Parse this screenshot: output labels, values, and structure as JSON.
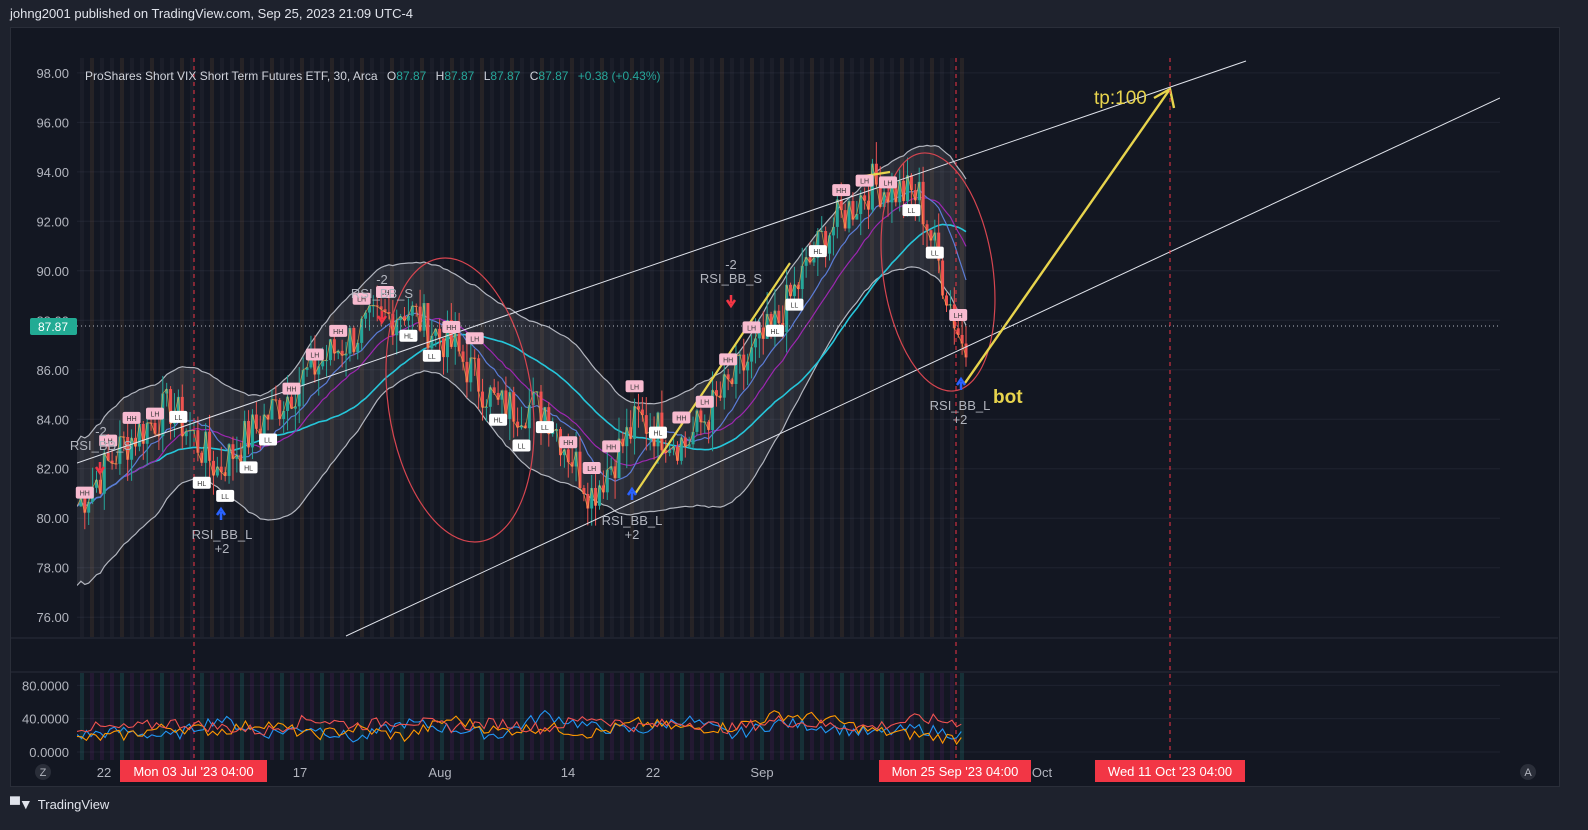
{
  "header": {
    "published": "johng2001 published on TradingView.com, Sep 25, 2023 21:09 UTC-4"
  },
  "footer": {
    "brand": "TradingView"
  },
  "legend": {
    "symbol": "ProShares Short VIX Short Term Futures ETF, 30, Arca",
    "o_label": "O",
    "o": "87.87",
    "h_label": "H",
    "h": "87.87",
    "l_label": "L",
    "l": "87.87",
    "c_label": "C",
    "c": "87.87",
    "change": "+0.38 (+0.43%)"
  },
  "price_badge": "87.87",
  "annotations": {
    "tp": "tp:100",
    "bot": "bot",
    "rsi_s1": "RSI_BB_S",
    "rsi_s1_n": "-2",
    "rsi_s2": "RSI_BB_S",
    "rsi_s2_n": "-2",
    "rsi_s3": "RSI_BB_S",
    "rsi_s3_n": "-2",
    "rsi_l1": "RSI_BB_L",
    "rsi_l1_n": "+2",
    "rsi_l2": "RSI_BB_L",
    "rsi_l2_n": "+2",
    "rsi_l3": "RSI_BB_L",
    "rsi_l3_n": "+2"
  },
  "time_axis": {
    "ticks": [
      "22",
      "17",
      "Aug",
      "14",
      "22",
      "Sep",
      "Oct"
    ],
    "markers": [
      "Mon 03 Jul '23   04:00",
      "Mon 25 Sep '23   04:00",
      "Wed 11 Oct '23   04:00"
    ]
  },
  "bottom_buttons": {
    "left": "Z",
    "right": "A"
  },
  "colors": {
    "bg": "#131722",
    "up": "#26a69a",
    "down": "#ef5350",
    "accent_yellow": "#e8d44d",
    "marker_red": "#f23645",
    "price_badge": "#22ab94"
  },
  "chart_data": [
    {
      "type": "line",
      "title": "ProShares Short VIX Short Term Futures ETF, 30, Arca",
      "y_ticks": [
        "98.00",
        "96.00",
        "94.00",
        "92.00",
        "90.00",
        "88.00",
        "86.00",
        "84.00",
        "82.00",
        "80.00",
        "78.00",
        "76.00"
      ],
      "ylim": [
        75.2,
        98.6
      ],
      "x": [
        "Jul 12",
        "Jul 17",
        "Jul 22",
        "Jul 26",
        "Jul 31",
        "Aug 4",
        "Aug 8",
        "Aug 11",
        "Aug 16",
        "Aug 18",
        "Aug 22",
        "Aug 25",
        "Aug 29",
        "Sep 1",
        "Sep 6",
        "Sep 11",
        "Sep 14",
        "Sep 18",
        "Sep 21",
        "Sep 25"
      ],
      "series": [
        {
          "values": [
            80.5,
            83.0,
            84.5,
            82.0,
            84.0,
            86.0,
            87.5,
            88.5,
            87.0,
            84.5,
            84.5,
            81.0,
            84.0,
            83.0,
            85.5,
            88.0,
            91.5,
            93.5,
            93.0,
            86.5
          ]
        }
      ],
      "pivot_labels": [
        "HH",
        "LH",
        "HH",
        "LH",
        "LL",
        "HL",
        "LL",
        "HL",
        "LL",
        "HH",
        "LH",
        "HH",
        "LH",
        "LH",
        "HL",
        "LL",
        "HH",
        "LH",
        "HL",
        "LL",
        "LL",
        "HH",
        "LH",
        "HH",
        "LH",
        "HL",
        "HH",
        "LH",
        "HH",
        "LH",
        "HL",
        "LL",
        "HL",
        "HH",
        "LH",
        "LH",
        "LL",
        "LL",
        "LH"
      ]
    },
    {
      "type": "line",
      "y_ticks": [
        "80.0000",
        "40.0000",
        "0.0000"
      ],
      "ylim": [
        0,
        90
      ],
      "series": [
        {
          "values": [
            20,
            25,
            18,
            40,
            22,
            30,
            15,
            35,
            28,
            20,
            45,
            30,
            25,
            40,
            20,
            35,
            30,
            22,
            28,
            20
          ]
        },
        {
          "values": [
            15,
            20,
            30,
            25,
            35,
            20,
            28,
            18,
            40,
            25,
            30,
            22,
            35,
            28,
            30,
            45,
            40,
            25,
            20,
            15
          ]
        },
        {
          "values": [
            30,
            28,
            35,
            30,
            25,
            40,
            32,
            38,
            30,
            35,
            28,
            42,
            30,
            36,
            28,
            38,
            32,
            30,
            40,
            35
          ]
        }
      ]
    }
  ]
}
